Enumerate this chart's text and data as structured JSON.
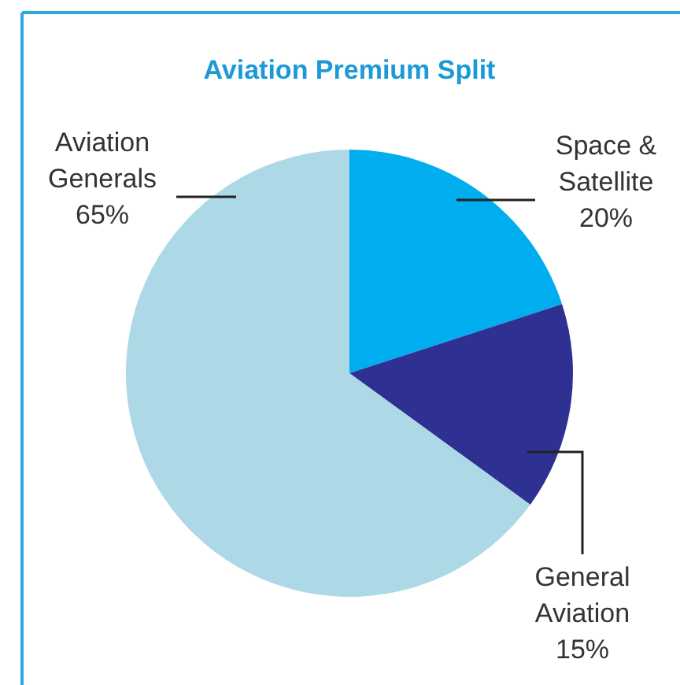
{
  "chart_data": {
    "type": "pie",
    "title": "Aviation Premium Split",
    "categories": [
      "Space & Satellite",
      "General Aviation",
      "Aviation Generals"
    ],
    "values": [
      20,
      15,
      65
    ],
    "value_labels": [
      "20%",
      "15%",
      "65%"
    ],
    "colors": [
      "#00adef",
      "#2e3192",
      "#add8e6"
    ]
  }
}
